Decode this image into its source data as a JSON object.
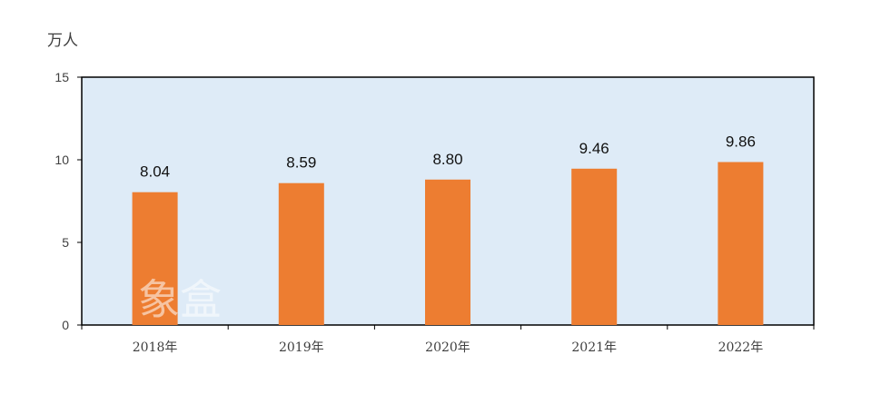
{
  "chart_data": {
    "type": "bar",
    "unit_label": "万人",
    "categories": [
      "2018年",
      "2019年",
      "2020年",
      "2021年",
      "2022年"
    ],
    "values": [
      8.04,
      8.59,
      8.8,
      9.46,
      9.86
    ],
    "value_labels": [
      "8.04",
      "8.59",
      "8.80",
      "9.46",
      "9.86"
    ],
    "ylim": [
      0,
      15
    ],
    "yticks": [
      0,
      5,
      10,
      15
    ],
    "ytick_labels": [
      "0",
      "5",
      "10",
      "15"
    ],
    "grid": false,
    "legend": "none",
    "colors": {
      "bar": "#ED7D31",
      "plot_background": "#DEEBF7",
      "axis": "#000000"
    }
  },
  "watermark": "象盒"
}
